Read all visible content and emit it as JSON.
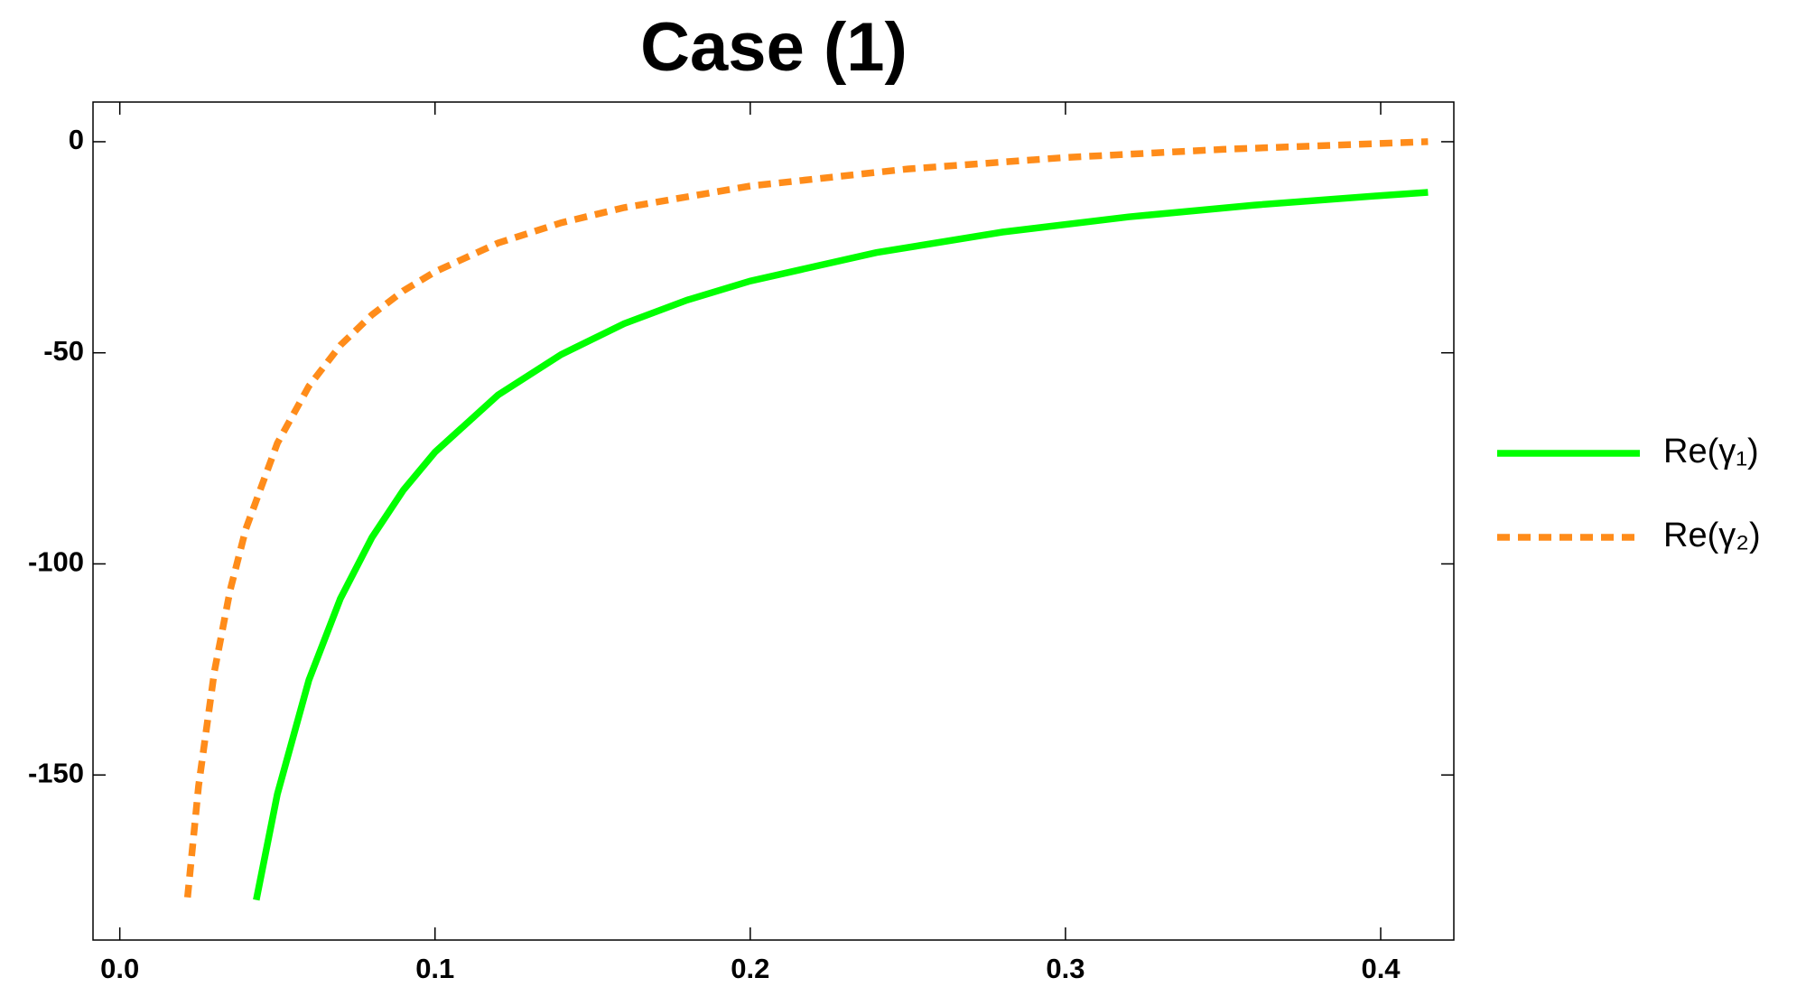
{
  "chart_data": {
    "type": "line",
    "title": "Case (1)",
    "xlim": [
      -0.0085,
      0.4232
    ],
    "ylim": [
      -189.1,
      9.4
    ],
    "xticks": [
      {
        "value": 0,
        "label": "0.0"
      },
      0.1,
      0.2,
      0.3,
      0.4
    ],
    "yticks": [
      0,
      -50,
      -100,
      -150
    ],
    "legend": "right",
    "series": [
      {
        "name": "Re(γ₁)",
        "color": "#00ff00",
        "style": "solid",
        "x": [
          0.0433,
          0.05,
          0.06,
          0.07,
          0.08,
          0.09,
          0.1,
          0.12,
          0.14,
          0.16,
          0.18,
          0.2,
          0.24,
          0.28,
          0.32,
          0.36,
          0.4,
          0.415
        ],
        "values": [
          -179.6,
          -154.5,
          -127.5,
          -108.2,
          -93.75,
          -82.5,
          -73.5,
          -60,
          -50.4,
          -43.1,
          -37.5,
          -33,
          -26.25,
          -21.4,
          -17.8,
          -15,
          -12.75,
          -12.0
        ]
      },
      {
        "name": "Re(γ₂)",
        "color": "#ff8c1a",
        "style": "dashed",
        "x": [
          0.0215,
          0.025,
          0.03,
          0.035,
          0.04,
          0.05,
          0.06,
          0.07,
          0.08,
          0.09,
          0.1,
          0.12,
          0.14,
          0.16,
          0.2,
          0.25,
          0.3,
          0.35,
          0.415
        ],
        "values": [
          -179.0,
          -152.6,
          -125.5,
          -106.2,
          -91.7,
          -71.4,
          -57.9,
          -48.2,
          -41.0,
          -35.3,
          -30.8,
          -24.0,
          -19.2,
          -15.6,
          -10.5,
          -6.44,
          -3.73,
          -1.8,
          0.02
        ]
      }
    ]
  }
}
